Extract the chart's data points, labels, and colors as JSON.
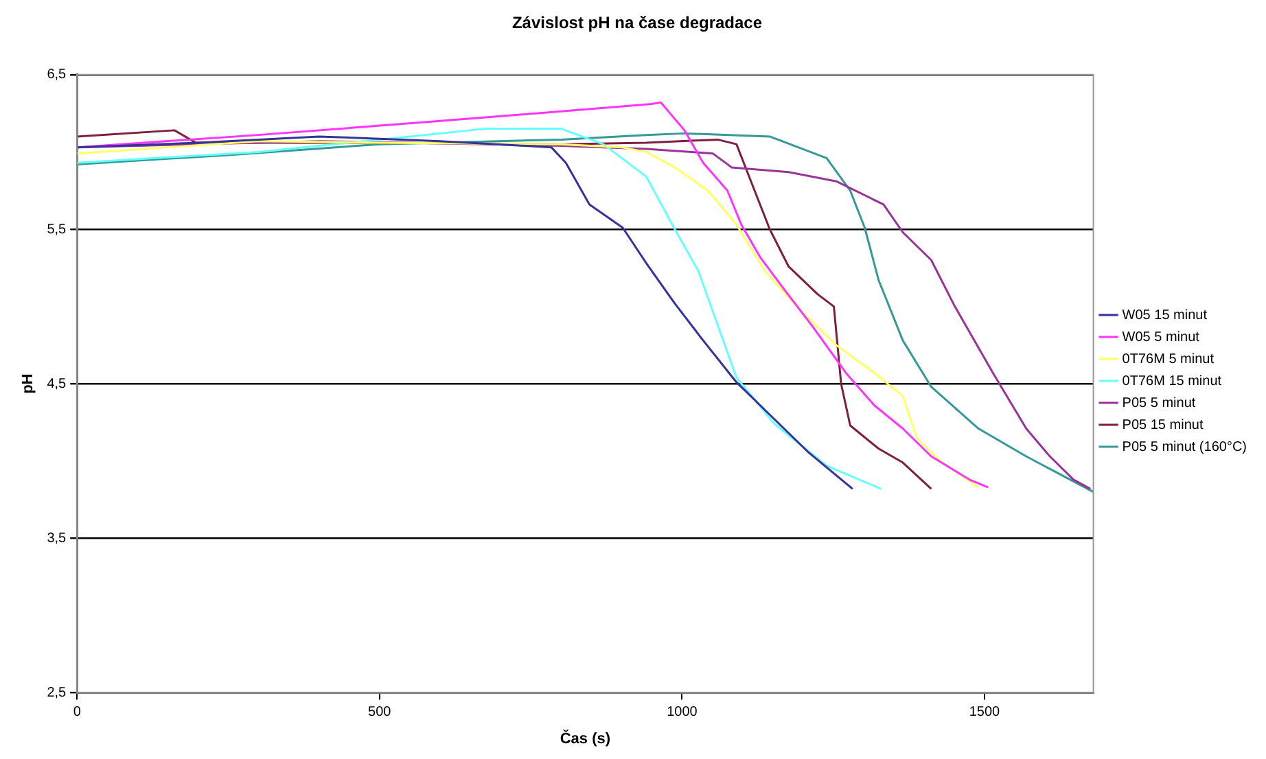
{
  "chart_data": {
    "type": "line",
    "title": "Závislost pH na čase degradace",
    "xlabel": "Čas (s)",
    "ylabel": "pH",
    "xlim": [
      0,
      1680
    ],
    "xticks": [
      0,
      500,
      1000,
      1500
    ],
    "ylim": [
      2.5,
      6.5
    ],
    "yticks": [
      {
        "value": 2.5,
        "label": "2,5"
      },
      {
        "value": 3.5,
        "label": "3,5"
      },
      {
        "value": 4.5,
        "label": "4,5"
      },
      {
        "value": 5.5,
        "label": "5,5"
      },
      {
        "value": 6.5,
        "label": "6,5"
      }
    ],
    "grid": "y",
    "legend": "right",
    "marker": "none",
    "line_style": "solid",
    "series": [
      {
        "name": "W05 15 minut",
        "color": "#333399",
        "x": [
          0,
          200,
          400,
          600,
          784,
          808,
          847,
          902,
          941,
          988,
          1035,
          1090,
          1145,
          1208,
          1282
        ],
        "values": [
          6.03,
          6.06,
          6.1,
          6.07,
          6.03,
          5.93,
          5.66,
          5.51,
          5.28,
          5.02,
          4.78,
          4.51,
          4.3,
          4.06,
          3.82
        ]
      },
      {
        "name": "W05 5 minut",
        "color": "#ff33ff",
        "x": [
          0,
          300,
          600,
          950,
          965,
          1004,
          1035,
          1075,
          1098,
          1129,
          1169,
          1216,
          1271,
          1318,
          1365,
          1412,
          1475,
          1506
        ],
        "values": [
          6.03,
          6.11,
          6.2,
          6.31,
          6.32,
          6.14,
          5.93,
          5.75,
          5.53,
          5.32,
          5.11,
          4.87,
          4.57,
          4.36,
          4.21,
          4.03,
          3.88,
          3.83
        ]
      },
      {
        "name": "0T76M 5 minut",
        "color": "#ffff66",
        "x": [
          0,
          300,
          500,
          800,
          900,
          941,
          988,
          1043,
          1090,
          1137,
          1192,
          1255,
          1318,
          1365,
          1388,
          1427,
          1490
        ],
        "values": [
          5.99,
          6.07,
          6.06,
          6.05,
          6.03,
          6.0,
          5.9,
          5.75,
          5.53,
          5.23,
          4.99,
          4.75,
          4.57,
          4.42,
          4.15,
          4.0,
          3.83
        ]
      },
      {
        "name": "0T76M 15 minut",
        "color": "#66ffff",
        "x": [
          0,
          300,
          500,
          675,
          800,
          870,
          941,
          988,
          1027,
          1090,
          1153,
          1239,
          1329
        ],
        "values": [
          5.93,
          6.0,
          6.08,
          6.15,
          6.15,
          6.05,
          5.84,
          5.5,
          5.23,
          4.54,
          4.24,
          3.97,
          3.82
        ]
      },
      {
        "name": "P05 5 minut",
        "color": "#993399",
        "x": [
          0,
          400,
          800,
          941,
          1051,
          1082,
          1176,
          1255,
          1333,
          1365,
          1412,
          1451,
          1514,
          1569,
          1608,
          1647,
          1675
        ],
        "values": [
          6.03,
          6.07,
          6.04,
          6.02,
          5.99,
          5.9,
          5.87,
          5.81,
          5.66,
          5.48,
          5.3,
          5.0,
          4.57,
          4.21,
          4.03,
          3.88,
          3.82
        ]
      },
      {
        "name": "P05 15 minut",
        "color": "#7f1f3f",
        "x": [
          0,
          161,
          196,
          500,
          800,
          941,
          1059,
          1090,
          1114,
          1145,
          1176,
          1224,
          1251,
          1263,
          1278,
          1325,
          1365,
          1412
        ],
        "values": [
          6.1,
          6.14,
          6.06,
          6.06,
          6.05,
          6.06,
          6.08,
          6.05,
          5.81,
          5.5,
          5.26,
          5.08,
          5.0,
          4.5,
          4.23,
          4.08,
          3.99,
          3.82
        ]
      },
      {
        "name": "P05 5 minut (160°C)",
        "color": "#339999",
        "x": [
          0,
          250,
          500,
          800,
          941,
          1004,
          1145,
          1239,
          1278,
          1302,
          1325,
          1365,
          1412,
          1490,
          1569,
          1680
        ],
        "values": [
          5.92,
          5.98,
          6.05,
          6.08,
          6.11,
          6.12,
          6.1,
          5.96,
          5.75,
          5.51,
          5.17,
          4.78,
          4.48,
          4.21,
          4.03,
          3.8
        ]
      }
    ]
  }
}
